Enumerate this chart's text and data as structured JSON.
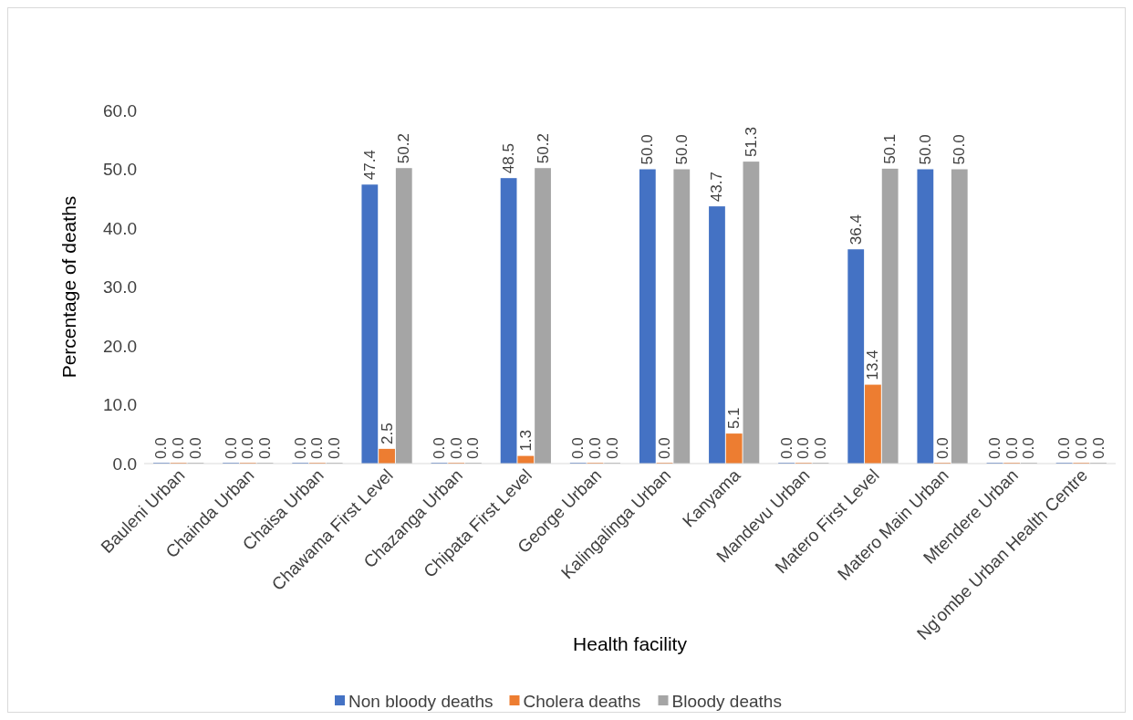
{
  "chart_data": {
    "type": "bar",
    "xlabel": "Health facility",
    "ylabel": "Percentage of deaths",
    "categories": [
      "Bauleni Urban",
      "Chainda Urban",
      "Chaisa Urban",
      "Chawama First Level",
      "Chazanga Urban",
      "Chipata First Level",
      "George Urban",
      "Kalingalinga Urban",
      "Kanyama",
      "Mandevu Urban",
      "Matero First Level",
      "Matero Main Urban",
      "Mtendere Urban",
      "Ng'ombe Urban Health Centre"
    ],
    "series": [
      {
        "name": "Non bloody deaths",
        "color": "#4472c4",
        "values": [
          0,
          0,
          0,
          47.4,
          0,
          48.5,
          0,
          50.0,
          43.7,
          0,
          36.4,
          50.0,
          0,
          0
        ],
        "value_labels": [
          "0.0",
          "0.0",
          "0.0",
          "47.4",
          "0.0",
          "48.5",
          "0.0",
          "50.0",
          "43.7",
          "0.0",
          "36.4",
          "50.0",
          "0.0",
          "0.0"
        ]
      },
      {
        "name": "Cholera deaths",
        "color": "#ed7d31",
        "values": [
          0,
          0,
          0,
          2.5,
          0,
          1.3,
          0,
          0,
          5.1,
          0,
          13.4,
          0,
          0,
          0
        ],
        "value_labels": [
          "0.0",
          "0.0",
          "0.0",
          "2.5",
          "0.0",
          "1.3",
          "0.0",
          "0.0",
          "5.1",
          "0.0",
          "13.4",
          "0.0",
          "0.0",
          "0.0"
        ]
      },
      {
        "name": "Bloody deaths",
        "color": "#a5a5a5",
        "values": [
          0,
          0,
          0,
          50.2,
          0,
          50.2,
          0,
          50.0,
          51.3,
          0,
          50.1,
          50.0,
          0,
          0
        ],
        "value_labels": [
          "0.0",
          "0.0",
          "0.0",
          "50.2",
          "0.0",
          "50.2",
          "0.0",
          "50.0",
          "51.3",
          "0.0",
          "50.1",
          "50.0",
          "0.0",
          "0.0"
        ]
      }
    ],
    "ylim": [
      0,
      60
    ],
    "yticks": [
      {
        "value": 0,
        "label": "0.0"
      },
      {
        "value": 10,
        "label": "10.0"
      },
      {
        "value": 20,
        "label": "20.0"
      },
      {
        "value": 30,
        "label": "30.0"
      },
      {
        "value": 40,
        "label": "40.0"
      },
      {
        "value": 50,
        "label": "50.0"
      },
      {
        "value": 60,
        "label": "60.0"
      }
    ],
    "grid": false,
    "legend": "bottom"
  }
}
